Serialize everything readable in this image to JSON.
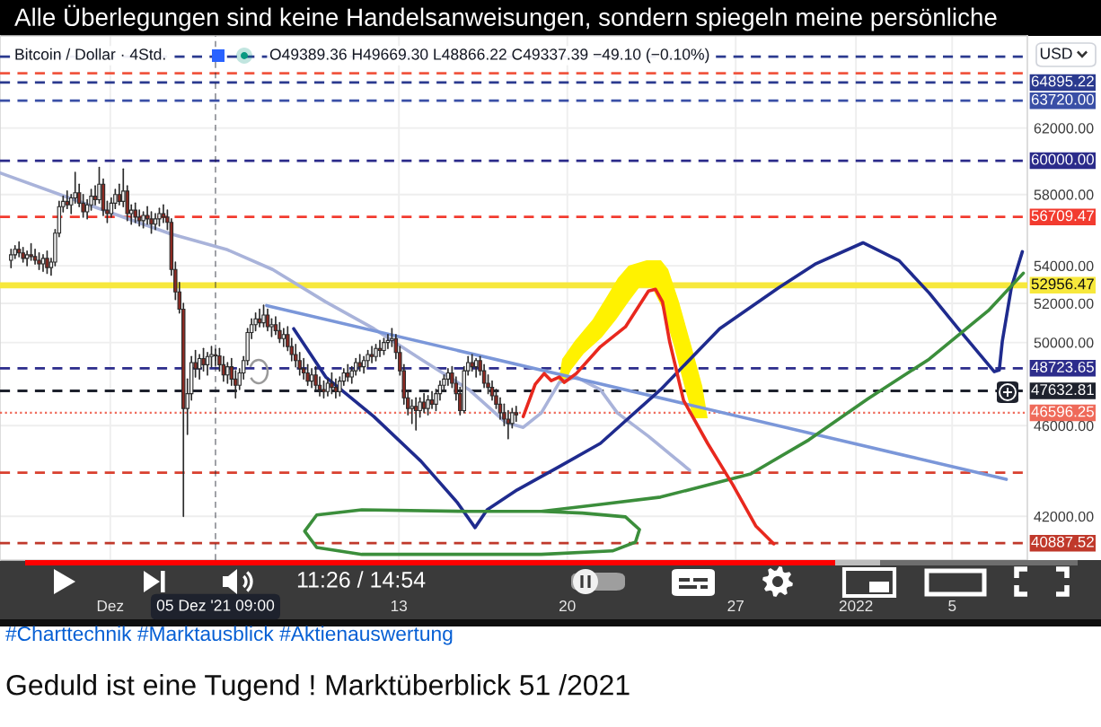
{
  "chart_data": {
    "type": "candlestick",
    "title": "Geduld ist eine Tugend ! Marktüberblick 51 /2021",
    "subtitle": "#Charttechnik #Marktausblick #Aktienauswertung",
    "annotations": [
      "Alle Überlegungen sind keine Handelsanweisungen, sondern spiegeln meine persönliche",
      "Bitcoin / Dollar · 4Std.",
      "O49389.36 H49669.30 L48866.22 C49337.39 −49.10 (−0.10%)",
      "11:26 / 14:54",
      "USD"
    ],
    "x": [
      "2021-11-26T21:00",
      "2021-11-27T01:00",
      "2021-11-27T05:00",
      "2021-11-27T09:00",
      "2021-11-27T13:00",
      "2021-11-27T17:00",
      "2021-11-27T21:00",
      "2021-11-28T01:00",
      "2021-11-28T05:00",
      "2021-11-28T09:00",
      "2021-11-28T13:00",
      "2021-11-28T17:00",
      "2021-11-28T21:00",
      "2021-11-29T01:00",
      "2021-11-29T05:00",
      "2021-11-29T09:00",
      "2021-11-29T13:00",
      "2021-11-29T17:00",
      "2021-11-29T21:00",
      "2021-11-30T01:00",
      "2021-11-30T05:00",
      "2021-11-30T09:00",
      "2021-11-30T13:00",
      "2021-11-30T17:00",
      "2021-11-30T21:00",
      "2021-12-01T01:00",
      "2021-12-01T05:00",
      "2021-12-01T09:00",
      "2021-12-01T13:00",
      "2021-12-01T17:00",
      "2021-12-01T21:00",
      "2021-12-02T01:00",
      "2021-12-02T05:00",
      "2021-12-02T09:00",
      "2021-12-02T13:00",
      "2021-12-02T17:00",
      "2021-12-02T21:00",
      "2021-12-03T01:00",
      "2021-12-03T05:00",
      "2021-12-03T09:00",
      "2021-12-03T13:00",
      "2021-12-03T17:00",
      "2021-12-03T21:00",
      "2021-12-04T01:00",
      "2021-12-04T05:00",
      "2021-12-04T09:00",
      "2021-12-04T13:00",
      "2021-12-04T17:00",
      "2021-12-04T21:00",
      "2021-12-05T01:00",
      "2021-12-05T05:00",
      "2021-12-05T09:00",
      "2021-12-05T13:00",
      "2021-12-05T17:00",
      "2021-12-05T21:00",
      "2021-12-06T01:00",
      "2021-12-06T05:00",
      "2021-12-06T09:00",
      "2021-12-06T13:00",
      "2021-12-06T17:00",
      "2021-12-06T21:00",
      "2021-12-07T01:00",
      "2021-12-07T05:00",
      "2021-12-07T09:00",
      "2021-12-07T13:00",
      "2021-12-07T17:00",
      "2021-12-07T21:00",
      "2021-12-08T01:00",
      "2021-12-08T05:00",
      "2021-12-08T09:00",
      "2021-12-08T13:00",
      "2021-12-08T17:00",
      "2021-12-08T21:00",
      "2021-12-09T01:00",
      "2021-12-09T05:00",
      "2021-12-09T09:00",
      "2021-12-09T13:00",
      "2021-12-09T17:00",
      "2021-12-09T21:00",
      "2021-12-10T01:00",
      "2021-12-10T05:00",
      "2021-12-10T09:00",
      "2021-12-10T13:00",
      "2021-12-10T17:00",
      "2021-12-10T21:00",
      "2021-12-11T01:00",
      "2021-12-11T05:00",
      "2021-12-11T09:00",
      "2021-12-11T13:00",
      "2021-12-11T17:00",
      "2021-12-11T21:00",
      "2021-12-12T01:00",
      "2021-12-12T05:00",
      "2021-12-12T09:00",
      "2021-12-12T13:00",
      "2021-12-12T17:00",
      "2021-12-12T21:00",
      "2021-12-13T01:00",
      "2021-12-13T05:00",
      "2021-12-13T09:00",
      "2021-12-13T13:00",
      "2021-12-13T17:00",
      "2021-12-13T21:00",
      "2021-12-14T01:00",
      "2021-12-14T05:00",
      "2021-12-14T09:00",
      "2021-12-14T13:00",
      "2021-12-14T17:00",
      "2021-12-14T21:00",
      "2021-12-15T01:00",
      "2021-12-15T05:00",
      "2021-12-15T09:00",
      "2021-12-15T13:00",
      "2021-12-15T17:00",
      "2021-12-15T21:00",
      "2021-12-16T01:00",
      "2021-12-16T05:00",
      "2021-12-16T09:00",
      "2021-12-16T13:00",
      "2021-12-16T17:00",
      "2021-12-16T21:00",
      "2021-12-17T01:00",
      "2021-12-17T05:00",
      "2021-12-17T09:00",
      "2021-12-17T13:00",
      "2021-12-17T17:00",
      "2021-12-17T21:00"
    ],
    "ohlc": [
      [
        54300,
        54900,
        53900,
        54600
      ],
      [
        54600,
        55100,
        54400,
        54900
      ],
      [
        54900,
        55300,
        54500,
        54700
      ],
      [
        54700,
        55000,
        54200,
        54400
      ],
      [
        54400,
        54800,
        54000,
        54600
      ],
      [
        54600,
        55200,
        54300,
        54500
      ],
      [
        54500,
        54900,
        54100,
        54300
      ],
      [
        54300,
        54700,
        53800,
        54100
      ],
      [
        54100,
        54600,
        53700,
        54400
      ],
      [
        54400,
        54800,
        53600,
        53900
      ],
      [
        53900,
        54400,
        53500,
        54200
      ],
      [
        54200,
        56000,
        54000,
        55800
      ],
      [
        55800,
        57600,
        55600,
        57300
      ],
      [
        57300,
        57900,
        57000,
        57600
      ],
      [
        57600,
        58200,
        57200,
        57400
      ],
      [
        57400,
        58000,
        56900,
        57800
      ],
      [
        57800,
        59300,
        57500,
        58100
      ],
      [
        58100,
        58600,
        57300,
        57500
      ],
      [
        57500,
        58000,
        56700,
        57000
      ],
      [
        57000,
        57700,
        56600,
        57400
      ],
      [
        57400,
        58300,
        57100,
        57900
      ],
      [
        57900,
        58500,
        57400,
        57700
      ],
      [
        57700,
        59600,
        57500,
        58600
      ],
      [
        58600,
        58900,
        56800,
        57100
      ],
      [
        57100,
        57600,
        56400,
        56900
      ],
      [
        56900,
        57800,
        56700,
        57500
      ],
      [
        57500,
        58300,
        57200,
        58000
      ],
      [
        58000,
        58600,
        57400,
        57600
      ],
      [
        57600,
        59500,
        57300,
        58200
      ],
      [
        58200,
        58500,
        56500,
        56900
      ],
      [
        56900,
        57400,
        56300,
        57100
      ],
      [
        57100,
        57500,
        56400,
        56700
      ],
      [
        56700,
        57100,
        56200,
        56500
      ],
      [
        56500,
        57000,
        56100,
        56800
      ],
      [
        56800,
        57300,
        56300,
        56600
      ],
      [
        56600,
        57000,
        55800,
        56300
      ],
      [
        56300,
        56900,
        56000,
        56600
      ],
      [
        56600,
        57200,
        56200,
        56900
      ],
      [
        56900,
        57400,
        56400,
        56700
      ],
      [
        56700,
        57100,
        56000,
        56400
      ],
      [
        56400,
        56600,
        53500,
        53800
      ],
      [
        53800,
        54200,
        52200,
        52600
      ],
      [
        52600,
        53100,
        51500,
        51700
      ],
      [
        51700,
        52000,
        42000,
        46800
      ],
      [
        46800,
        48200,
        45600,
        47500
      ],
      [
        47500,
        49300,
        47200,
        49000
      ],
      [
        49000,
        49600,
        48300,
        48700
      ],
      [
        48700,
        49400,
        48200,
        49200
      ],
      [
        49200,
        49700,
        48600,
        48900
      ],
      [
        48900,
        49500,
        48400,
        49300
      ],
      [
        49300,
        49800,
        48800,
        49400
      ],
      [
        49389.36,
        49669.3,
        48866.22,
        49337.39
      ],
      [
        49337.39,
        49700,
        48600,
        48900
      ],
      [
        48900,
        49300,
        48100,
        48400
      ],
      [
        48400,
        49000,
        48000,
        48800
      ],
      [
        48800,
        49200,
        47900,
        48200
      ],
      [
        48200,
        48600,
        47300,
        47900
      ],
      [
        47900,
        48700,
        47700,
        48500
      ],
      [
        48500,
        49300,
        48200,
        49100
      ],
      [
        49100,
        50700,
        48900,
        50500
      ],
      [
        50500,
        51200,
        50200,
        50900
      ],
      [
        50900,
        51500,
        50600,
        51200
      ],
      [
        51200,
        51700,
        50800,
        51000
      ],
      [
        51000,
        51900,
        50800,
        51400
      ],
      [
        51400,
        51700,
        50600,
        50800
      ],
      [
        50800,
        51200,
        50300,
        50900
      ],
      [
        50900,
        51300,
        50400,
        50600
      ],
      [
        50600,
        51000,
        50000,
        50200
      ],
      [
        50200,
        50700,
        49800,
        50400
      ],
      [
        50400,
        50800,
        49600,
        49800
      ],
      [
        49800,
        50200,
        49100,
        49400
      ],
      [
        49400,
        49900,
        48800,
        49100
      ],
      [
        49100,
        49500,
        48400,
        48700
      ],
      [
        48700,
        49200,
        48200,
        48500
      ],
      [
        48500,
        48900,
        47900,
        48100
      ],
      [
        48100,
        48700,
        47800,
        48400
      ],
      [
        48400,
        48800,
        47700,
        47900
      ],
      [
        47900,
        48300,
        47400,
        47700
      ],
      [
        47700,
        48100,
        47300,
        47600
      ],
      [
        47600,
        48200,
        47400,
        48000
      ],
      [
        48000,
        48500,
        47500,
        47800
      ],
      [
        47800,
        48200,
        47300,
        47600
      ],
      [
        47600,
        48300,
        47400,
        48100
      ],
      [
        48100,
        48700,
        47900,
        48500
      ],
      [
        48500,
        48900,
        48100,
        48300
      ],
      [
        48300,
        48800,
        48000,
        48600
      ],
      [
        48600,
        49200,
        48400,
        49000
      ],
      [
        49000,
        49400,
        48600,
        48800
      ],
      [
        48800,
        49300,
        48500,
        49100
      ],
      [
        49100,
        49600,
        48800,
        49400
      ],
      [
        49400,
        49800,
        49000,
        49300
      ],
      [
        49300,
        49900,
        49100,
        49700
      ],
      [
        49700,
        50100,
        49300,
        49600
      ],
      [
        49600,
        50200,
        49400,
        50000
      ],
      [
        50000,
        50400,
        49700,
        50100
      ],
      [
        50100,
        50700,
        49800,
        50200
      ],
      [
        50200,
        50400,
        49200,
        49500
      ],
      [
        49500,
        49800,
        48400,
        48600
      ],
      [
        48600,
        48900,
        47000,
        47300
      ],
      [
        47300,
        47600,
        46500,
        46800
      ],
      [
        46800,
        47200,
        46100,
        46900
      ],
      [
        46900,
        47300,
        45800,
        46700
      ],
      [
        46700,
        47300,
        46400,
        47100
      ],
      [
        47100,
        47500,
        46600,
        46800
      ],
      [
        46800,
        47400,
        46500,
        47200
      ],
      [
        47200,
        47600,
        46800,
        47000
      ],
      [
        47000,
        47700,
        46700,
        47500
      ],
      [
        47500,
        48100,
        47200,
        47900
      ],
      [
        47900,
        48400,
        47600,
        48200
      ],
      [
        48200,
        48700,
        47900,
        48500
      ],
      [
        48500,
        48800,
        47800,
        48000
      ],
      [
        48000,
        48300,
        47200,
        47500
      ],
      [
        47500,
        47800,
        46500,
        46700
      ],
      [
        46700,
        48800,
        46600,
        48600
      ],
      [
        48600,
        49300,
        48400,
        49000
      ],
      [
        49000,
        49400,
        48600,
        48800
      ],
      [
        48800,
        49200,
        48300,
        49100
      ],
      [
        49100,
        49300,
        48400,
        48600
      ],
      [
        48600,
        48900,
        47800,
        48000
      ],
      [
        48000,
        48400,
        47500,
        47800
      ],
      [
        47800,
        48100,
        47200,
        47400
      ],
      [
        47400,
        47700,
        46800,
        47000
      ],
      [
        47000,
        47300,
        46300,
        46600
      ],
      [
        46600,
        47000,
        46000,
        46300
      ],
      [
        46300,
        46700,
        45400,
        46100
      ],
      [
        46100,
        46800,
        45900,
        46600
      ],
      [
        46600,
        46900,
        46200,
        46500
      ]
    ],
    "series": [
      {
        "type": "line",
        "color": "#a9b3da",
        "x": [
          "2021-11-26T10:00",
          "2021-11-29T22:00",
          "2021-12-03T12:00",
          "2021-12-05T21:00",
          "2021-12-07T18:00",
          "2021-12-09T23:00",
          "2021-12-11T23:00",
          "2021-12-13T22:00",
          "2021-12-15T22:00",
          "2021-12-17T10:00",
          "2021-12-18T04:00",
          "2021-12-18T22:00",
          "2021-12-19T16:00",
          "2021-12-20T09:00",
          "2021-12-21T09:00",
          "2021-12-22T02:00",
          "2021-12-23T09:00",
          "2021-12-25T02:00"
        ],
        "values": [
          59270,
          57490,
          55760,
          54870,
          53800,
          52080,
          50700,
          49170,
          47690,
          46170,
          45920,
          46590,
          48040,
          48300,
          47690,
          46590,
          45510,
          43990
        ]
      },
      {
        "type": "line",
        "color": "#7b97d9",
        "x": [
          "2021-12-07T12:00",
          "2022-01-07T06:00"
        ],
        "values": [
          51890,
          43590
        ]
      },
      {
        "type": "line",
        "color": "#1f2b8e",
        "x": [
          "2021-12-08T15:00",
          "2021-12-09T23:00",
          "2021-12-11T23:00",
          "2021-12-13T22:00",
          "2021-12-15T10:00",
          "2021-12-16T04:00",
          "2021-12-16T16:00",
          "2021-12-17T22:00",
          "2021-12-19T16:00",
          "2021-12-21T09:00",
          "2021-12-23T21:00",
          "2021-12-26T08:00",
          "2021-12-28T19:00",
          "2021-12-30T07:00",
          "2022-01-01T07:00",
          "2022-01-02T19:00",
          "2022-01-04T01:00",
          "2022-01-05T06:00",
          "2022-01-06T18:00",
          "2022-01-06T23:00",
          "2022-01-07T02:00",
          "2022-01-07T11:00",
          "2022-01-07T22:00"
        ],
        "values": [
          50700,
          48300,
          46420,
          44390,
          42600,
          41530,
          42280,
          43130,
          44150,
          45190,
          47690,
          50700,
          52830,
          54080,
          55260,
          54280,
          52550,
          50700,
          48560,
          48640,
          50060,
          52830,
          54770
        ]
      },
      {
        "type": "line",
        "color": "#3b8e3b",
        "x": [
          "2021-12-18T22:00",
          "2021-12-20T15:00",
          "2021-12-22T10:00",
          "2021-12-23T00:00",
          "2021-12-22T20:00",
          "2021-12-21T21:00",
          "2021-12-18T22:00",
          "2021-12-11T11:00",
          "2021-12-09T14:00",
          "2021-12-09T02:00",
          "2021-12-09T14:00",
          "2021-12-11T11:00",
          "2021-12-15T22:00",
          "2021-12-18T22:00",
          "2021-12-21T09:00",
          "2021-12-23T21:00",
          "2021-12-27T15:00",
          "2021-12-30T01:00",
          "2022-01-01T12:00",
          "2022-01-04T01:00",
          "2022-01-06T12:00",
          "2022-01-07T23:00"
        ],
        "values": [
          42210,
          42140,
          41980,
          41450,
          40930,
          40570,
          40430,
          40430,
          40710,
          41380,
          42060,
          42280,
          42210,
          42210,
          42510,
          42820,
          43830,
          45350,
          47260,
          49170,
          51620,
          53600
        ]
      },
      {
        "type": "line",
        "color": "#e8281e",
        "x": [
          "2021-12-18T04:00",
          "2021-12-18T16:00",
          "2021-12-19T01:00",
          "2021-12-19T08:00",
          "2021-12-19T16:00",
          "2021-12-19T21:00",
          "2021-12-20T09:00",
          "2021-12-21T09:00",
          "2021-12-22T10:00",
          "2021-12-23T09:00",
          "2021-12-23T16:00",
          "2021-12-23T23:00",
          "2021-12-24T06:00",
          "2021-12-24T20:00",
          "2021-12-25T20:00",
          "2021-12-26T21:00",
          "2021-12-27T20:00",
          "2021-12-28T14:00"
        ],
        "values": [
          46420,
          47950,
          48470,
          48120,
          48300,
          48040,
          48470,
          49790,
          50790,
          52650,
          52740,
          52080,
          50060,
          47180,
          45190,
          43360,
          41600,
          40860
        ]
      }
    ],
    "ref_lines": [
      {
        "axis": "y",
        "value": 66600,
        "color": "#2b3a8f",
        "line_style": "dashed"
      },
      {
        "axis": "y",
        "value": 65500,
        "color": "#f0553f",
        "line_style": "dashed"
      },
      {
        "axis": "y",
        "value": 64895.22,
        "label": "64895.22",
        "color": "#2b3a8f",
        "line_style": "dashed"
      },
      {
        "axis": "y",
        "value": 63720.0,
        "label": "63720.00",
        "color": "#3a4fa6",
        "line_style": "dashed"
      },
      {
        "axis": "y",
        "value": 60000.0,
        "label": "60000.00",
        "color": "#2b2b8a",
        "line_style": "dashed"
      },
      {
        "axis": "y",
        "value": 56709.47,
        "label": "56709.47",
        "color": "#f23b2f",
        "line_style": "dashed"
      },
      {
        "axis": "y",
        "value": 52956.47,
        "label": "52956.47",
        "color": "#f7e83c",
        "line_style": "solid"
      },
      {
        "axis": "y",
        "value": 48723.65,
        "label": "48723.65",
        "color": "#2d2d8c",
        "line_style": "dashed"
      },
      {
        "axis": "y",
        "value": 47632.81,
        "label": "47632.81",
        "color": "#1e222d",
        "line_style": "dashed"
      },
      {
        "axis": "y",
        "value": 46596.25,
        "label": "46596.25",
        "color": "#ef6a5a",
        "line_style": "dotted"
      },
      {
        "axis": "y",
        "value": 43880,
        "color": "#d9402f",
        "line_style": "dashed"
      },
      {
        "axis": "y",
        "value": 40887.52,
        "label": "40887.52",
        "color": "#c0392b",
        "line_style": "dashed"
      },
      {
        "axis": "x",
        "value": "2021-12-05T09:00",
        "label": "05 Dez '21 09:00",
        "color": "#1e222d",
        "line_style": "dashed"
      }
    ],
    "xlim": [
      "2021-11-26T10:00",
      "2022-01-08T03:00"
    ],
    "xticks": [
      {
        "value": "2021-12-01T00:00",
        "label": "Dez"
      },
      {
        "value": "2021-12-13T00:00",
        "label": "13"
      },
      {
        "value": "2021-12-20T00:00",
        "label": "20"
      },
      {
        "value": "2021-12-27T00:00",
        "label": "27"
      },
      {
        "value": "2022-01-01T00:00",
        "label": "2022"
      },
      {
        "value": "2022-01-05T00:00",
        "label": "5"
      }
    ],
    "ylim": [
      40200,
      68000
    ],
    "yticks": [
      {
        "value": 42000,
        "label": "42000.00"
      },
      {
        "value": 46000,
        "label": "46000.00"
      },
      {
        "value": 50000,
        "label": "50000.00"
      },
      {
        "value": 52000,
        "label": "52000.00"
      },
      {
        "value": 54000,
        "label": "54000.00"
      },
      {
        "value": 58000,
        "label": "58000.00"
      },
      {
        "value": 62000,
        "label": "62000.00"
      }
    ],
    "log": true,
    "grid": true
  }
}
